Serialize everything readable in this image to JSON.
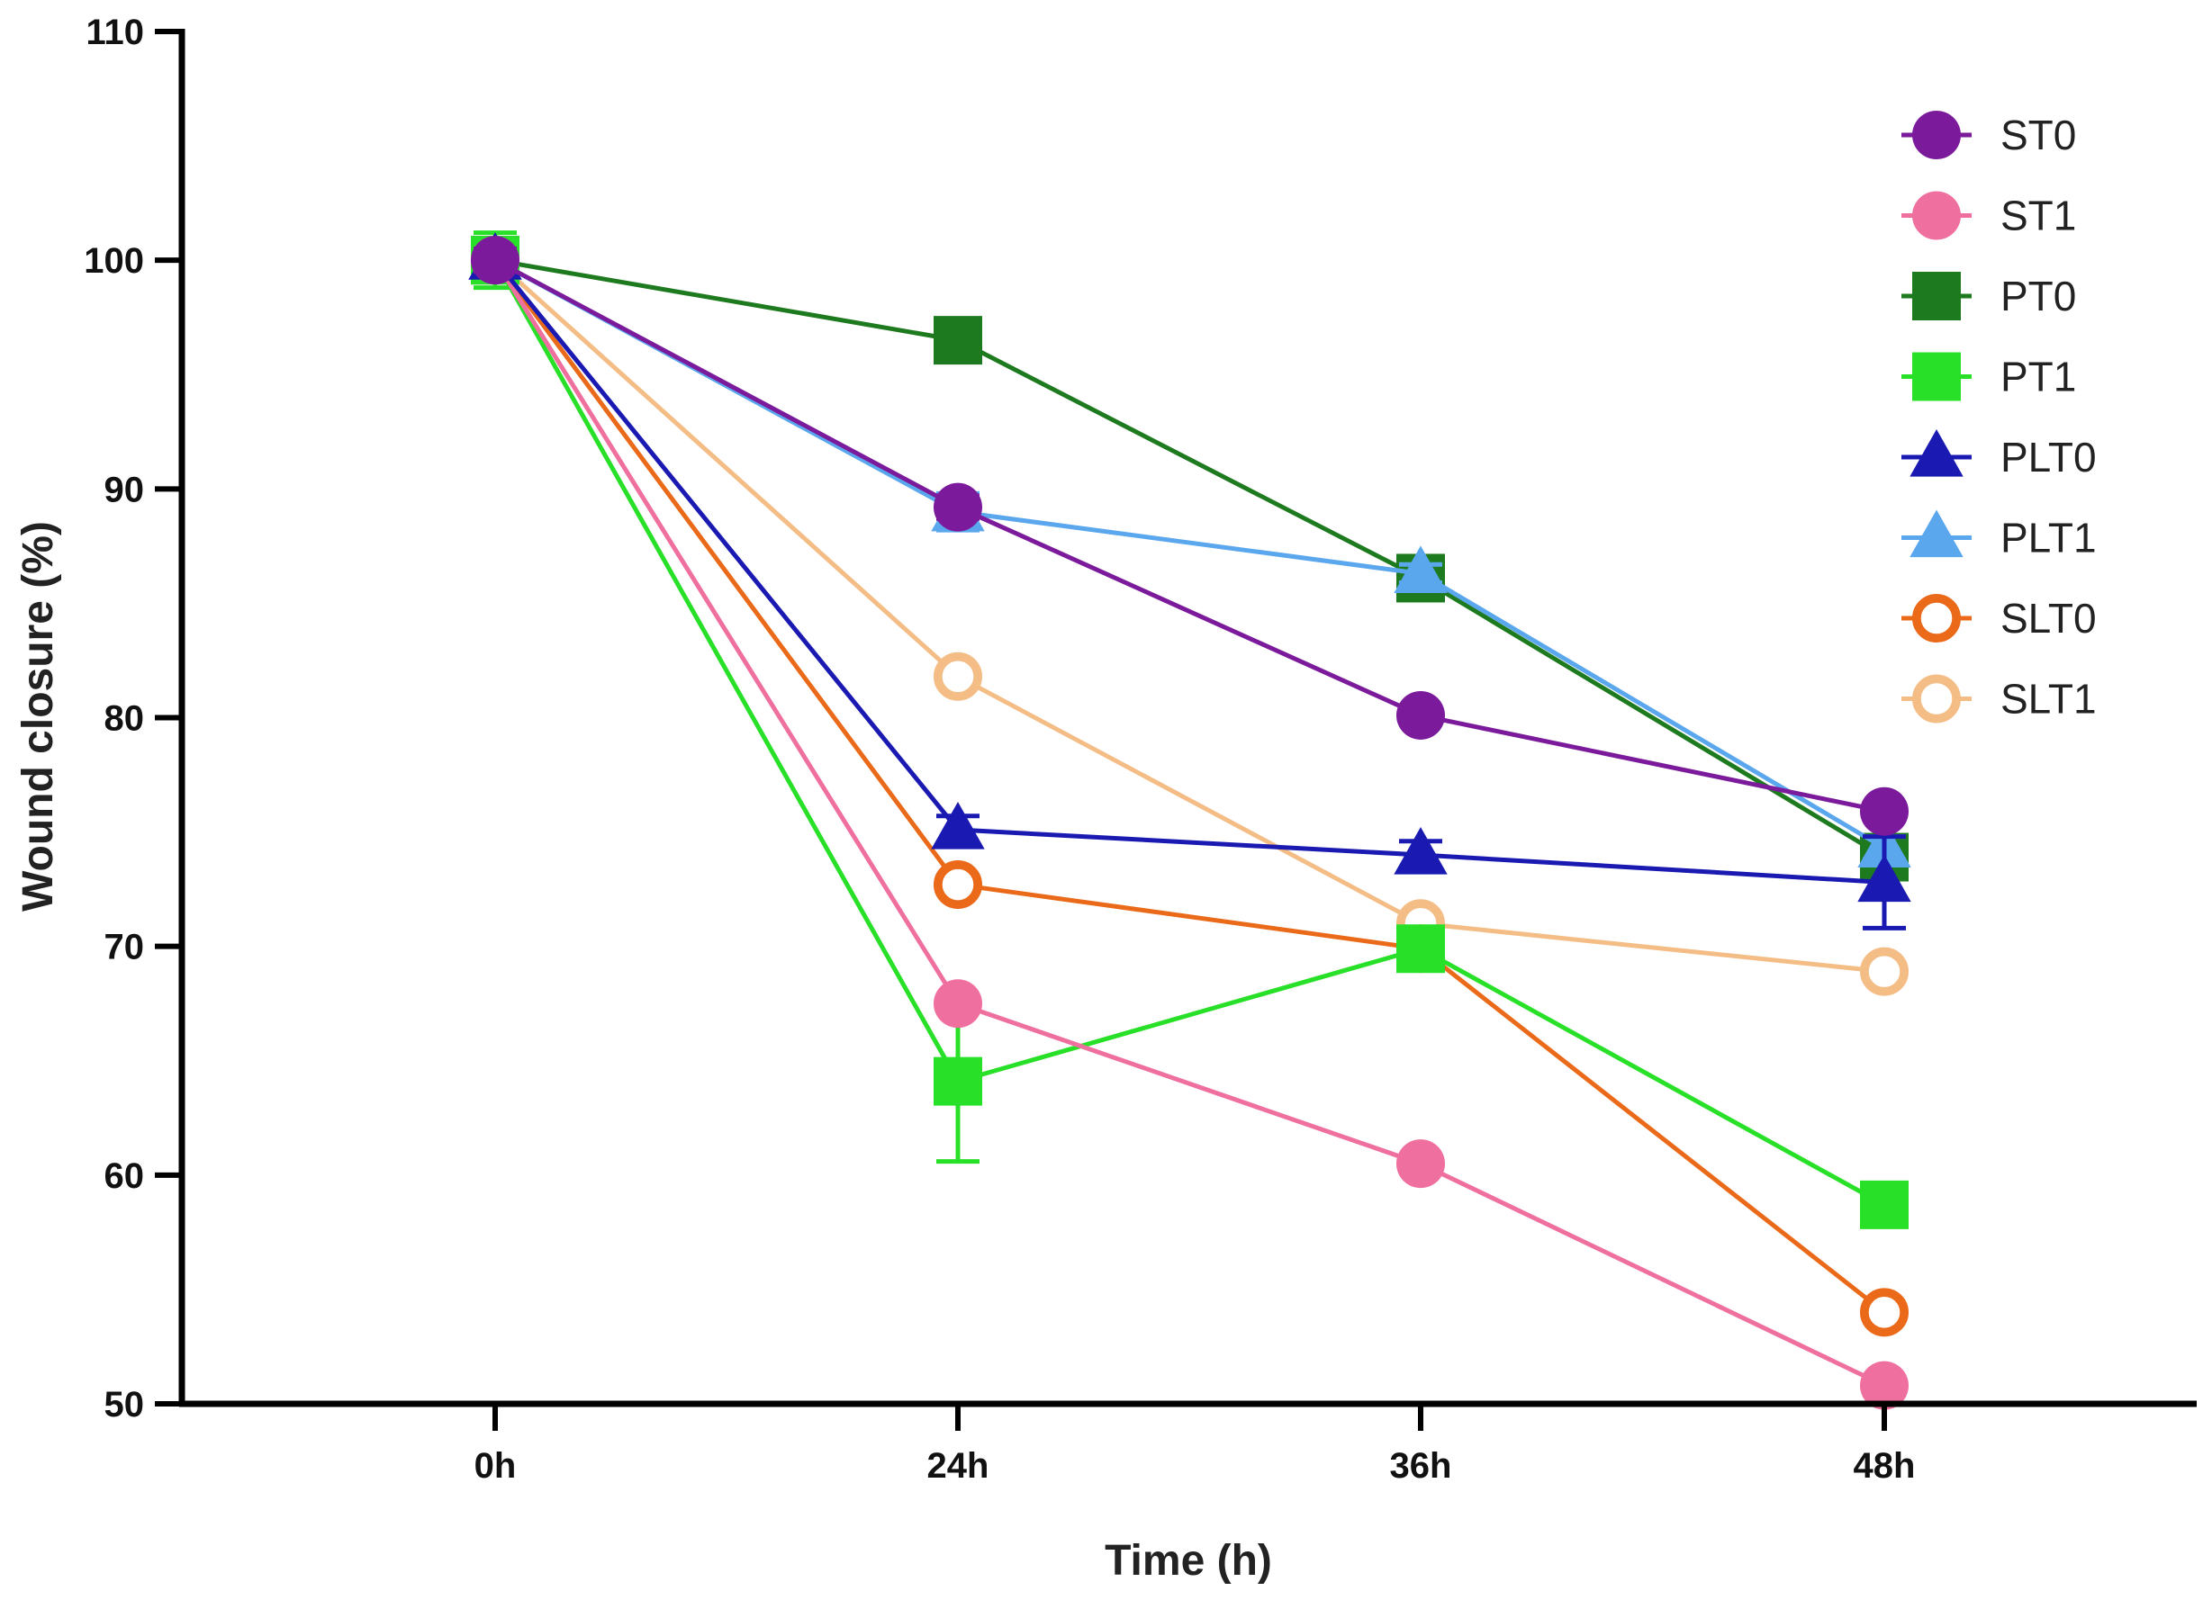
{
  "chart_data": {
    "type": "line",
    "title": "",
    "xlabel": "Time (h)",
    "ylabel": "Wound closure (%)",
    "categories": [
      "0h",
      "24h",
      "36h",
      "48h"
    ],
    "ylim": [
      50,
      110
    ],
    "yticks": [
      50,
      60,
      70,
      80,
      90,
      100,
      110
    ],
    "legend_position": "top-right",
    "series": [
      {
        "name": "PT0",
        "color": "#1e7a1e",
        "marker": "square",
        "values": [
          100,
          96.5,
          86.1,
          73.9
        ],
        "errors": [
          0.9,
          0.4,
          0.4,
          0.5
        ]
      },
      {
        "name": "PLT1",
        "color": "#5aa7ee",
        "marker": "triangle",
        "values": [
          100,
          89.0,
          86.3,
          74.3
        ],
        "errors": [
          0.6,
          0.8,
          0.4,
          0.5
        ]
      },
      {
        "name": "SLT1",
        "color": "#f5bd86",
        "marker": "open-circle",
        "values": [
          100,
          81.8,
          71.0,
          68.9
        ],
        "errors": [
          0.5,
          0.4,
          0.4,
          0.4
        ]
      },
      {
        "name": "SLT0",
        "color": "#ea6a1a",
        "marker": "open-circle",
        "values": [
          100,
          72.7,
          69.9,
          54.0
        ],
        "errors": [
          0.5,
          0.4,
          0.4,
          0.4
        ]
      },
      {
        "name": "PT1",
        "color": "#29e029",
        "marker": "square",
        "values": [
          100,
          64.1,
          69.9,
          58.7
        ],
        "errors": [
          1.2,
          3.5,
          0.5,
          0.5
        ]
      },
      {
        "name": "ST1",
        "color": "#ef6f9f",
        "marker": "circle",
        "values": [
          100,
          67.5,
          60.5,
          50.8
        ],
        "errors": [
          0.5,
          0.4,
          0.4,
          0.4
        ]
      },
      {
        "name": "PLT0",
        "color": "#1a1ab2",
        "marker": "triangle",
        "values": [
          100,
          75.1,
          74.0,
          72.8
        ],
        "errors": [
          0.5,
          0.6,
          0.6,
          2.0
        ]
      },
      {
        "name": "ST0",
        "color": "#7b1a9b",
        "marker": "circle",
        "values": [
          100,
          89.2,
          80.1,
          75.9
        ],
        "errors": [
          0.5,
          0.5,
          0.4,
          0.4
        ]
      }
    ],
    "legend": [
      {
        "name": "ST0",
        "color": "#7b1a9b",
        "marker": "circle"
      },
      {
        "name": "ST1",
        "color": "#ef6f9f",
        "marker": "circle"
      },
      {
        "name": "PT0",
        "color": "#1e7a1e",
        "marker": "square"
      },
      {
        "name": "PT1",
        "color": "#29e029",
        "marker": "square"
      },
      {
        "name": "PLT0",
        "color": "#1a1ab2",
        "marker": "triangle"
      },
      {
        "name": "PLT1",
        "color": "#5aa7ee",
        "marker": "triangle"
      },
      {
        "name": "SLT0",
        "color": "#ea6a1a",
        "marker": "open-circle"
      },
      {
        "name": "SLT1",
        "color": "#f5bd86",
        "marker": "open-circle"
      }
    ]
  }
}
